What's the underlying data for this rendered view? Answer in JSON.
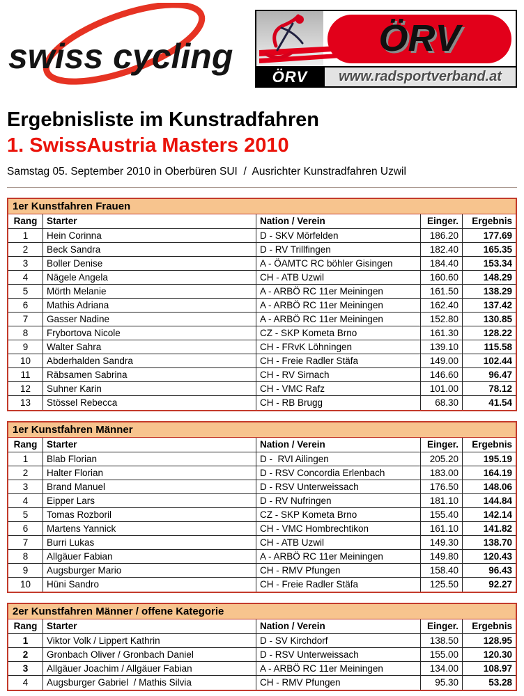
{
  "header": {
    "swiss_logo_text": "swiss cycling",
    "orv": {
      "acronym": "ÖRV",
      "website": "www.radsportverband.at"
    }
  },
  "title": {
    "line1": "Ergebnisliste im Kunstradfahren",
    "line2": "1. SwissAustria Masters 2010",
    "subtitle": "Samstag 05. September 2010 in Oberbüren SUI  /  Ausrichter Kunstradfahren Uzwil"
  },
  "columns": [
    "Rang",
    "Starter",
    "Nation / Verein",
    "Einger.",
    "Ergebnis"
  ],
  "tables": [
    {
      "title": "1er Kunstfahren Frauen",
      "rows": [
        {
          "rang": "1",
          "starter": "Hein Corinna",
          "verein": "D - SKV Mörfelden",
          "einger": "186.20",
          "ergebnis": "177.69",
          "rang_bold": false
        },
        {
          "rang": "2",
          "starter": "Beck Sandra",
          "verein": "D - RV Trillfingen",
          "einger": "182.40",
          "ergebnis": "165.35",
          "rang_bold": false
        },
        {
          "rang": "3",
          "starter": "Boller Denise",
          "verein": "A - ÖAMTC RC böhler Gisingen",
          "einger": "184.40",
          "ergebnis": "153.34",
          "rang_bold": false
        },
        {
          "rang": "4",
          "starter": "Nägele Angela",
          "verein": "CH - ATB Uzwil",
          "einger": "160.60",
          "ergebnis": "148.29",
          "rang_bold": false
        },
        {
          "rang": "5",
          "starter": "Mörth Melanie",
          "verein": "A - ARBÖ RC 11er Meiningen",
          "einger": "161.50",
          "ergebnis": "138.29",
          "rang_bold": false
        },
        {
          "rang": "6",
          "starter": "Mathis Adriana",
          "verein": "A - ARBÖ RC 11er Meiningen",
          "einger": "162.40",
          "ergebnis": "137.42",
          "rang_bold": false
        },
        {
          "rang": "7",
          "starter": "Gasser Nadine",
          "verein": "A - ARBÖ RC 11er Meiningen",
          "einger": "152.80",
          "ergebnis": "130.85",
          "rang_bold": false
        },
        {
          "rang": "8",
          "starter": "Frybortova Nicole",
          "verein": "CZ - SKP Kometa Brno",
          "einger": "161.30",
          "ergebnis": "128.22",
          "rang_bold": false
        },
        {
          "rang": "9",
          "starter": "Walter Sahra",
          "verein": "CH - FRvK Löhningen",
          "einger": "139.10",
          "ergebnis": "115.58",
          "rang_bold": false
        },
        {
          "rang": "10",
          "starter": "Abderhalden Sandra",
          "verein": "CH - Freie Radler Stäfa",
          "einger": "149.00",
          "ergebnis": "102.44",
          "rang_bold": false
        },
        {
          "rang": "11",
          "starter": "Räbsamen Sabrina",
          "verein": "CH - RV Sirnach",
          "einger": "146.60",
          "ergebnis": "96.47",
          "rang_bold": false
        },
        {
          "rang": "12",
          "starter": "Suhner Karin",
          "verein": "CH - VMC Rafz",
          "einger": "101.00",
          "ergebnis": "78.12",
          "rang_bold": false
        },
        {
          "rang": "13",
          "starter": "Stössel Rebecca",
          "verein": "CH - RB Brugg",
          "einger": "68.30",
          "ergebnis": "41.54",
          "rang_bold": false
        }
      ]
    },
    {
      "title": "1er Kunstfahren Männer",
      "rows": [
        {
          "rang": "1",
          "starter": "Blab Florian",
          "verein": "D -  RVI Ailingen",
          "einger": "205.20",
          "ergebnis": "195.19",
          "rang_bold": false
        },
        {
          "rang": "2",
          "starter": "Halter Florian",
          "verein": "D - RSV Concordia Erlenbach",
          "einger": "183.00",
          "ergebnis": "164.19",
          "rang_bold": false
        },
        {
          "rang": "3",
          "starter": "Brand Manuel",
          "verein": "D - RSV Unterweissach",
          "einger": "176.50",
          "ergebnis": "148.06",
          "rang_bold": false
        },
        {
          "rang": "4",
          "starter": "Eipper Lars",
          "verein": "D - RV Nufringen",
          "einger": "181.10",
          "ergebnis": "144.84",
          "rang_bold": false
        },
        {
          "rang": "5",
          "starter": "Tomas Rozboril",
          "verein": "CZ - SKP Kometa Brno",
          "einger": "155.40",
          "ergebnis": "142.14",
          "rang_bold": false
        },
        {
          "rang": "6",
          "starter": "Martens Yannick",
          "verein": "CH - VMC Hombrechtikon",
          "einger": "161.10",
          "ergebnis": "141.82",
          "rang_bold": false
        },
        {
          "rang": "7",
          "starter": "Burri Lukas",
          "verein": "CH - ATB Uzwil",
          "einger": "149.30",
          "ergebnis": "138.70",
          "rang_bold": false
        },
        {
          "rang": "8",
          "starter": "Allgäuer Fabian",
          "verein": "A - ARBÖ RC 11er Meiningen",
          "einger": "149.80",
          "ergebnis": "120.43",
          "rang_bold": false
        },
        {
          "rang": "9",
          "starter": "Augsburger Mario",
          "verein": "CH - RMV Pfungen",
          "einger": "158.40",
          "ergebnis": "96.43",
          "rang_bold": false
        },
        {
          "rang": "10",
          "starter": "Hüni Sandro",
          "verein": "CH - Freie Radler Stäfa",
          "einger": "125.50",
          "ergebnis": "92.27",
          "rang_bold": false
        }
      ]
    },
    {
      "title": "2er Kunstfahren Männer / offene Kategorie",
      "rows": [
        {
          "rang": "1",
          "starter": "Viktor Volk / Lippert Kathrin",
          "verein": "D - SV Kirchdorf",
          "einger": "138.50",
          "ergebnis": "128.95",
          "rang_bold": true
        },
        {
          "rang": "2",
          "starter": "Gronbach Oliver / Gronbach Daniel",
          "verein": "D - RSV Unterweissach",
          "einger": "155.00",
          "ergebnis": "120.30",
          "rang_bold": true
        },
        {
          "rang": "3",
          "starter": "Allgäuer Joachim / Allgäuer Fabian",
          "verein": "A - ARBÖ RC 11er Meiningen",
          "einger": "134.00",
          "ergebnis": "108.97",
          "rang_bold": true
        },
        {
          "rang": "4",
          "starter": "Augsburger Gabriel  / Mathis Silvia",
          "verein": "CH - RMV Pfungen",
          "einger": "95.30",
          "ergebnis": "53.28",
          "rang_bold": false
        }
      ]
    }
  ],
  "colors": {
    "title-red": "#ea130a",
    "border-red": "#c33a2b",
    "band-peach": "#f7c48e",
    "logo-red": "#e2001a",
    "swoosh-red": "#e63323"
  }
}
